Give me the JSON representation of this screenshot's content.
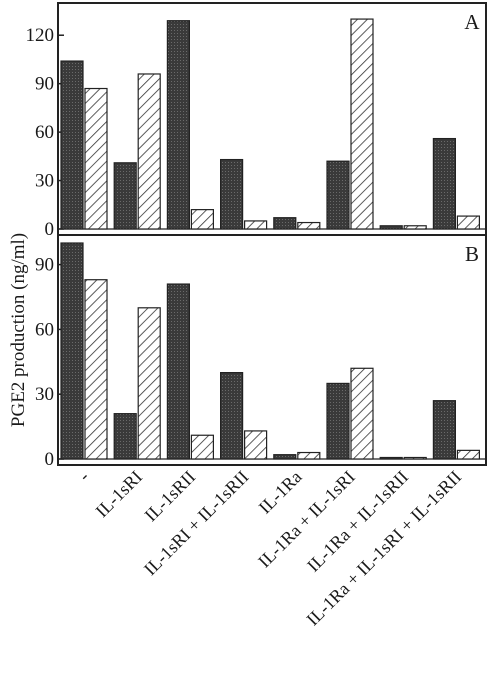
{
  "chart_data": {
    "type": "bar",
    "ylabel": "PGE2 production (ng/ml)",
    "categories": [
      "-",
      "IL-1sRI",
      "IL-1sRII",
      "IL-1sRI + IL-1sRII",
      "IL-1Ra",
      "IL-1Ra + IL-1sRI",
      "IL-1Ra + IL-1sRII",
      "IL-1Ra + IL-1sRI + IL-1sRII"
    ],
    "colors": {
      "dark": "#3a3a3a",
      "hatch": "#333333",
      "axis": "#222222"
    },
    "panels": [
      {
        "label": "A",
        "yticks": [
          "0",
          "30",
          "60",
          "90",
          "120"
        ],
        "ylim": [
          0,
          135
        ],
        "series": [
          {
            "style": "dark",
            "values": [
              104,
              41,
              129,
              43,
              7,
              42,
              2,
              56
            ]
          },
          {
            "style": "hatched",
            "values": [
              87,
              96,
              12,
              5,
              4,
              130,
              2,
              8
            ]
          }
        ]
      },
      {
        "label": "B",
        "yticks": [
          "0",
          "30",
          "60",
          "90"
        ],
        "ylim": [
          0,
          100
        ],
        "series": [
          {
            "style": "dark",
            "values": [
              100,
              21,
              81,
              40,
              2,
              35,
              0.5,
              27
            ]
          },
          {
            "style": "hatched",
            "values": [
              83,
              70,
              11,
              13,
              3,
              42,
              0.5,
              4
            ]
          }
        ]
      }
    ]
  }
}
